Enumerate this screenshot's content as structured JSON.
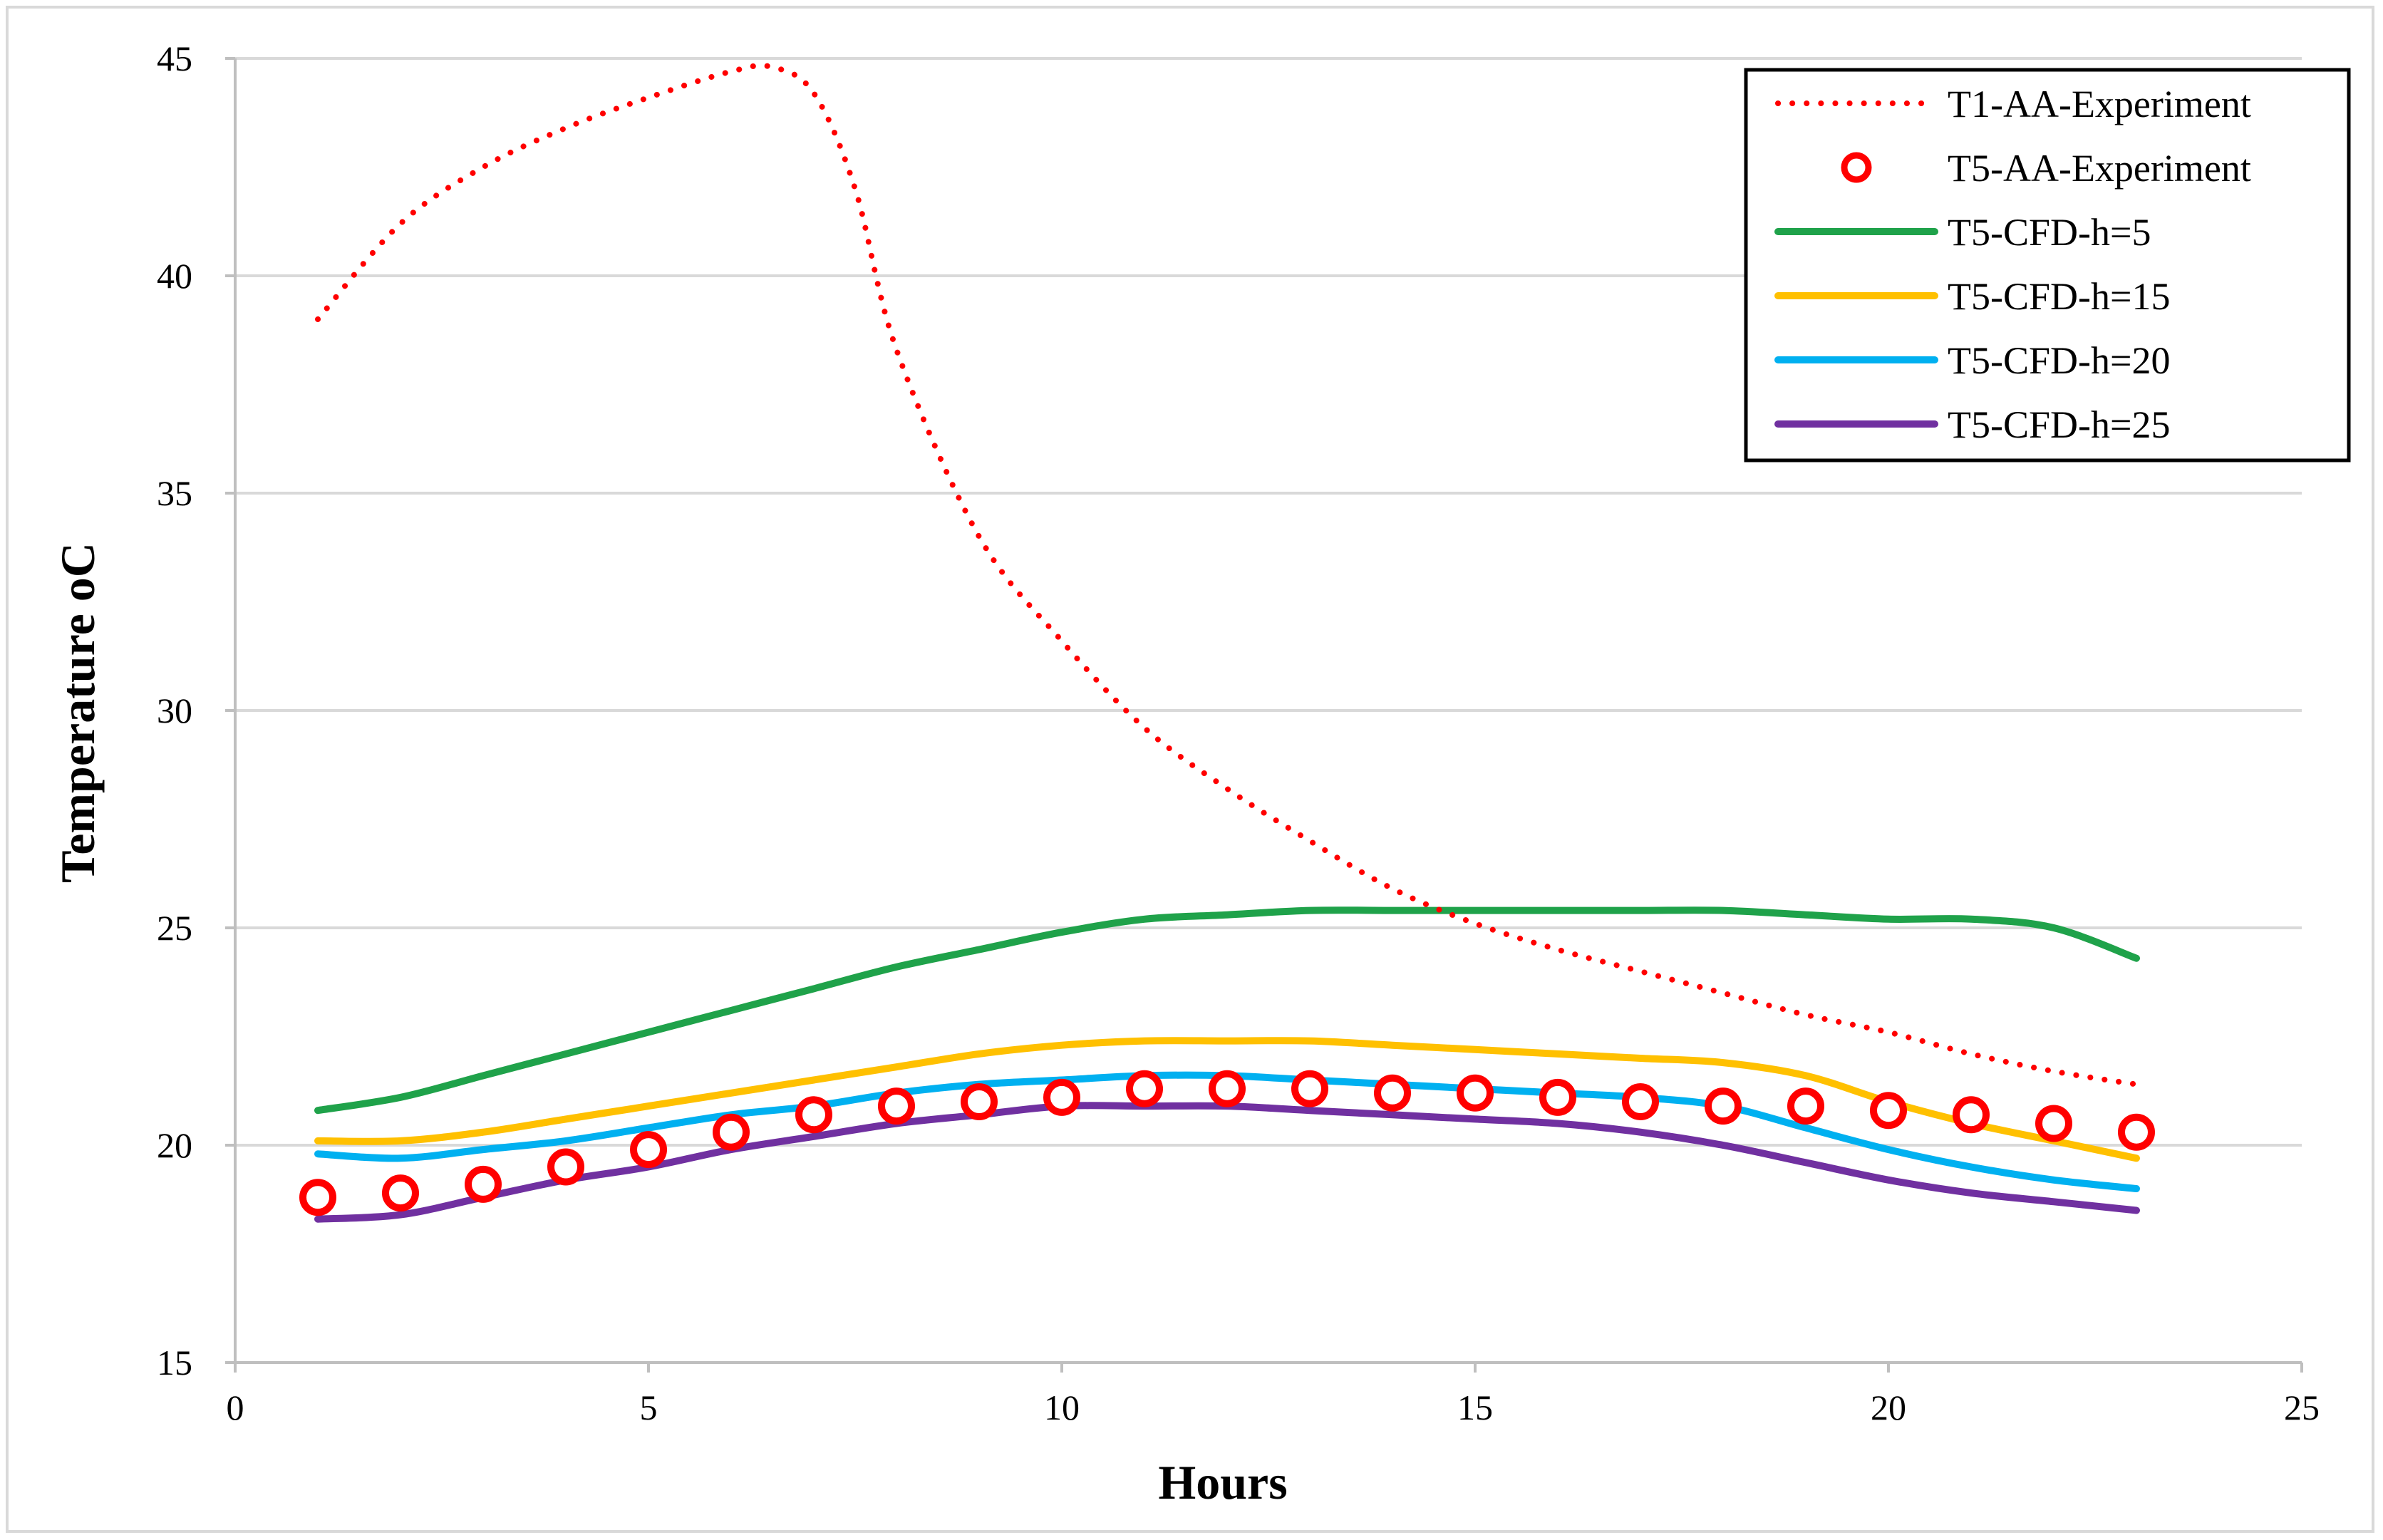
{
  "chart_data": {
    "type": "line",
    "title": "",
    "xlabel": "Hours",
    "ylabel": "Temperature oC",
    "xlim": [
      0,
      25
    ],
    "ylim": [
      15,
      45
    ],
    "xticks": [
      0,
      5,
      10,
      15,
      20,
      25
    ],
    "yticks": [
      15,
      20,
      25,
      30,
      35,
      40,
      45
    ],
    "grid": "horizontal",
    "legend_position": "top-right",
    "series": [
      {
        "name": "T1-AA-Experiment",
        "style": "dotted",
        "color": "#ff0000",
        "x": [
          1,
          2,
          3,
          4,
          5,
          6,
          6.5,
          7,
          7.5,
          8,
          9,
          10,
          11,
          12,
          13,
          14,
          15,
          16,
          17,
          18,
          19,
          20,
          21,
          22,
          23
        ],
        "y": [
          39.0,
          41.2,
          42.5,
          43.4,
          44.1,
          44.7,
          44.8,
          44.2,
          42.0,
          38.3,
          34.0,
          31.6,
          29.6,
          28.2,
          27.0,
          25.9,
          25.1,
          24.5,
          24.0,
          23.5,
          23.0,
          22.6,
          22.1,
          21.7,
          21.4
        ]
      },
      {
        "name": "T5-AA-Experiment",
        "style": "markers",
        "color": "#ff0000",
        "x": [
          1,
          2,
          3,
          4,
          5,
          6,
          7,
          8,
          9,
          10,
          11,
          12,
          13,
          14,
          15,
          16,
          17,
          18,
          19,
          20,
          21,
          22,
          23
        ],
        "y": [
          18.8,
          18.9,
          19.1,
          19.5,
          19.9,
          20.3,
          20.7,
          20.9,
          21.0,
          21.1,
          21.3,
          21.3,
          21.3,
          21.2,
          21.2,
          21.1,
          21.0,
          20.9,
          20.9,
          20.8,
          20.7,
          20.5,
          20.3
        ]
      },
      {
        "name": "T5-CFD-h=5",
        "style": "solid",
        "color": "#1fa24a",
        "x": [
          1,
          2,
          3,
          4,
          5,
          6,
          7,
          8,
          9,
          10,
          11,
          12,
          13,
          14,
          15,
          16,
          17,
          18,
          19,
          20,
          21,
          22,
          23
        ],
        "y": [
          20.8,
          21.1,
          21.6,
          22.1,
          22.6,
          23.1,
          23.6,
          24.1,
          24.5,
          24.9,
          25.2,
          25.3,
          25.4,
          25.4,
          25.4,
          25.4,
          25.4,
          25.4,
          25.3,
          25.2,
          25.2,
          25.0,
          24.3
        ]
      },
      {
        "name": "T5-CFD-h=15",
        "style": "solid",
        "color": "#ffc000",
        "x": [
          1,
          2,
          3,
          4,
          5,
          6,
          7,
          8,
          9,
          10,
          11,
          12,
          13,
          14,
          15,
          16,
          17,
          18,
          19,
          20,
          21,
          22,
          23
        ],
        "y": [
          20.1,
          20.1,
          20.3,
          20.6,
          20.9,
          21.2,
          21.5,
          21.8,
          22.1,
          22.3,
          22.4,
          22.4,
          22.4,
          22.3,
          22.2,
          22.1,
          22.0,
          21.9,
          21.6,
          21.0,
          20.5,
          20.1,
          19.7
        ]
      },
      {
        "name": "T5-CFD-h=20",
        "style": "solid",
        "color": "#00b0f0",
        "x": [
          1,
          2,
          3,
          4,
          5,
          6,
          7,
          8,
          9,
          10,
          11,
          12,
          13,
          14,
          15,
          16,
          17,
          18,
          19,
          20,
          21,
          22,
          23
        ],
        "y": [
          19.8,
          19.7,
          19.9,
          20.1,
          20.4,
          20.7,
          20.9,
          21.2,
          21.4,
          21.5,
          21.6,
          21.6,
          21.5,
          21.4,
          21.3,
          21.2,
          21.1,
          20.9,
          20.4,
          19.9,
          19.5,
          19.2,
          19.0
        ]
      },
      {
        "name": "T5-CFD-h=25",
        "style": "solid",
        "color": "#7030a0",
        "x": [
          1,
          2,
          3,
          4,
          5,
          6,
          7,
          8,
          9,
          10,
          11,
          12,
          13,
          14,
          15,
          16,
          17,
          18,
          19,
          20,
          21,
          22,
          23
        ],
        "y": [
          18.3,
          18.4,
          18.8,
          19.2,
          19.5,
          19.9,
          20.2,
          20.5,
          20.7,
          20.9,
          20.9,
          20.9,
          20.8,
          20.7,
          20.6,
          20.5,
          20.3,
          20.0,
          19.6,
          19.2,
          18.9,
          18.7,
          18.5
        ]
      }
    ]
  }
}
